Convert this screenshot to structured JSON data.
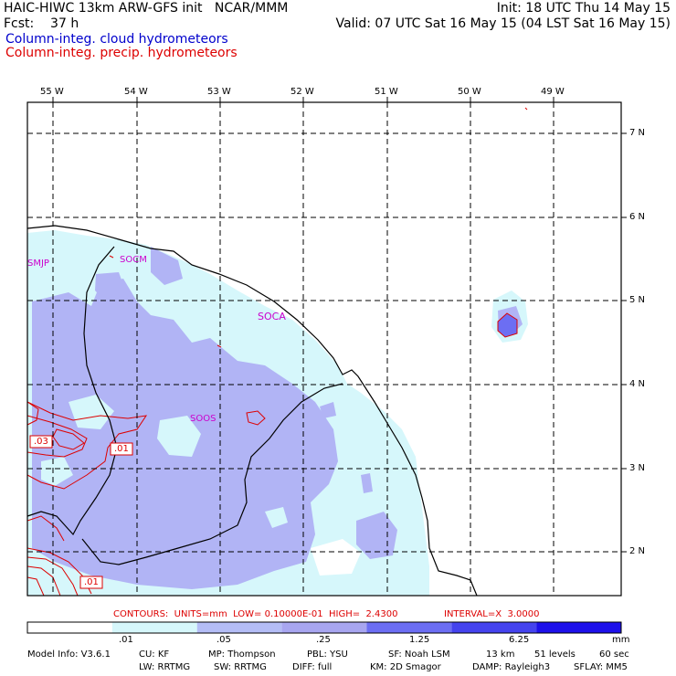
{
  "header": {
    "left1": "HAIC-HIWC 13km ARW-GFS init   NCAR/MMM",
    "right1": "Init: 18 UTC Thu 14 May 15",
    "left2": "Fcst:    37 h",
    "right2": "Valid: 07 UTC Sat 16 May 15 (04 LST Sat 16 May 15)",
    "field1": "Column-integ. cloud hydrometeors",
    "field2": "Column-integ. precip. hydrometeors"
  },
  "map": {
    "lon_labels": [
      "55 W",
      "54 W",
      "53 W",
      "52 W",
      "51 W",
      "50 W",
      "49 W"
    ],
    "lat_labels": [
      "7 N",
      "6 N",
      "5 N",
      "4 N",
      "3 N",
      "2 N"
    ],
    "stations": [
      "SMJP",
      "SOCM",
      "SOCA",
      "SOOS"
    ],
    "contour_labels": [
      ".03",
      ".01",
      ".01"
    ]
  },
  "contours_line": {
    "prefix": "CONTOURS:  UNITS=mm  LOW= 0.10000E-01  HIGH=  2.4300",
    "interval": "INTERVAL=X  3.0000"
  },
  "colorbar": {
    "colors": [
      "#ffffff",
      "#d6f7fb",
      "#b4bdf6",
      "#a8a6f0",
      "#6c6ef3",
      "#4543ee",
      "#1d10ea"
    ],
    "labels": [
      ".01",
      ".05",
      ".25",
      "1.25",
      "6.25"
    ],
    "units": "mm"
  },
  "model_info": {
    "line1": [
      "Model Info: V3.6.1",
      "CU: KF",
      "MP: Thompson",
      "PBL: YSU",
      "SF: Noah LSM",
      "13 km",
      "51 levels",
      "60 sec"
    ],
    "line2": [
      "LW: RRTMG",
      "SW: RRTMG",
      "DIFF: full",
      "KM: 2D Smagor",
      "DAMP: Rayleigh3",
      "SFLAY: MM5"
    ]
  }
}
